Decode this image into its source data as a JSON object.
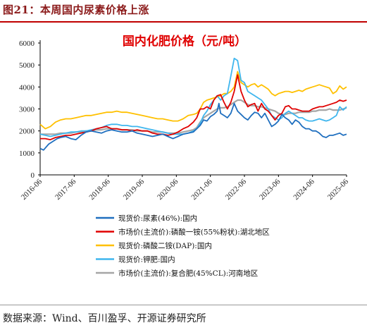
{
  "figure_title": "图21：本周国内尿素价格上涨",
  "source_note": "数据来源：Wind、百川盈孚、开源证券研究所",
  "colors": {
    "series_urea": "#1f6fbf",
    "series_map": "#e00000",
    "series_dap": "#ffc000",
    "series_potash": "#3fb6ee",
    "series_compound": "#a6a6a6",
    "title_red": "#e00000",
    "header_red": "#c00000"
  },
  "chart_data": {
    "type": "line",
    "title": "国内化肥价格（元/吨）",
    "ylim": [
      0,
      6000
    ],
    "yticks": [
      0,
      1000,
      2000,
      3000,
      4000,
      5000,
      6000
    ],
    "xlim": [
      2016.5,
      2025.5
    ],
    "xticks": [
      "2016-06",
      "2017-06",
      "2018-06",
      "2019-06",
      "2020-06",
      "2021-06",
      "2022-06",
      "2023-06",
      "2024-06",
      "2025-06"
    ],
    "grid": false,
    "legend_position": "bottom",
    "series": [
      {
        "name": "现货价:尿素(46%):国内",
        "color": "#1f6fbf",
        "x": [
          2016.5,
          2016.6,
          2016.75,
          2016.9,
          2017.0,
          2017.1,
          2017.25,
          2017.4,
          2017.55,
          2017.7,
          2017.85,
          2018.0,
          2018.15,
          2018.3,
          2018.45,
          2018.6,
          2018.75,
          2018.9,
          2019.05,
          2019.2,
          2019.35,
          2019.5,
          2019.65,
          2019.8,
          2019.95,
          2020.1,
          2020.25,
          2020.4,
          2020.55,
          2020.7,
          2020.85,
          2021.0,
          2021.1,
          2021.2,
          2021.3,
          2021.4,
          2021.5,
          2021.6,
          2021.7,
          2021.75,
          2021.8,
          2021.9,
          2022.0,
          2022.1,
          2022.2,
          2022.3,
          2022.4,
          2022.5,
          2022.6,
          2022.7,
          2022.8,
          2022.9,
          2023.0,
          2023.1,
          2023.2,
          2023.3,
          2023.4,
          2023.5,
          2023.6,
          2023.7,
          2023.8,
          2023.9,
          2024.0,
          2024.1,
          2024.2,
          2024.3,
          2024.4,
          2024.5,
          2024.6,
          2024.7,
          2024.8,
          2024.9,
          2025.0,
          2025.1,
          2025.2,
          2025.3,
          2025.4,
          2025.5
        ],
        "y": [
          1200,
          1130,
          1400,
          1550,
          1650,
          1700,
          1750,
          1650,
          1600,
          1800,
          1950,
          2000,
          1950,
          1900,
          2000,
          2050,
          2000,
          1950,
          1950,
          2000,
          1900,
          1850,
          1800,
          1750,
          1800,
          1850,
          1750,
          1650,
          1750,
          1850,
          1900,
          1950,
          2100,
          2250,
          2500,
          2450,
          2650,
          2750,
          2900,
          3250,
          2800,
          2700,
          2600,
          2800,
          3250,
          2900,
          2750,
          2600,
          2500,
          2700,
          2850,
          2800,
          2600,
          2800,
          2500,
          2200,
          2300,
          2450,
          2750,
          2600,
          2500,
          2300,
          2500,
          2400,
          2200,
          2100,
          2100,
          2000,
          2000,
          1900,
          1750,
          1700,
          1800,
          1800,
          1850,
          1900,
          1800,
          1850
        ]
      },
      {
        "name": "市场价(主流价):磷酸一铵(55%粉状):湖北地区",
        "color": "#e00000",
        "x": [
          2016.5,
          2016.65,
          2016.8,
          2016.95,
          2017.1,
          2017.25,
          2017.4,
          2017.55,
          2017.7,
          2017.85,
          2018.0,
          2018.15,
          2018.3,
          2018.45,
          2018.6,
          2018.75,
          2018.9,
          2019.05,
          2019.2,
          2019.35,
          2019.5,
          2019.65,
          2019.8,
          2019.95,
          2020.1,
          2020.25,
          2020.4,
          2020.55,
          2020.7,
          2020.85,
          2021.0,
          2021.1,
          2021.2,
          2021.3,
          2021.4,
          2021.5,
          2021.6,
          2021.7,
          2021.8,
          2021.9,
          2022.0,
          2022.1,
          2022.2,
          2022.3,
          2022.4,
          2022.5,
          2022.6,
          2022.7,
          2022.8,
          2022.9,
          2023.0,
          2023.1,
          2023.2,
          2023.3,
          2023.4,
          2023.5,
          2023.6,
          2023.7,
          2023.8,
          2023.9,
          2024.0,
          2024.1,
          2024.2,
          2024.3,
          2024.4,
          2024.5,
          2024.6,
          2024.7,
          2024.8,
          2024.9,
          2025.0,
          2025.1,
          2025.2,
          2025.3,
          2025.4,
          2025.5
        ],
        "y": [
          1650,
          1650,
          1600,
          1700,
          1750,
          1800,
          1800,
          1850,
          1900,
          1950,
          2000,
          2100,
          2150,
          2200,
          2100,
          2100,
          2050,
          2050,
          2000,
          2050,
          2000,
          2000,
          1900,
          1850,
          1850,
          1800,
          1850,
          1950,
          2100,
          2200,
          2400,
          2600,
          3000,
          3000,
          3100,
          3000,
          3400,
          3600,
          3650,
          3300,
          3000,
          3300,
          3800,
          4550,
          3800,
          3400,
          3100,
          3200,
          3250,
          2900,
          3250,
          3000,
          2900,
          2700,
          2500,
          2700,
          2800,
          3100,
          3150,
          3000,
          3000,
          2950,
          2900,
          2900,
          2900,
          3000,
          3050,
          3100,
          3100,
          3150,
          3200,
          3250,
          3300,
          3400,
          3350,
          3400
        ]
      },
      {
        "name": "现货价:磷酸二铵(DAP):国内",
        "color": "#ffc000",
        "x": [
          2016.5,
          2016.65,
          2016.8,
          2016.95,
          2017.1,
          2017.25,
          2017.4,
          2017.55,
          2017.7,
          2017.85,
          2018.0,
          2018.15,
          2018.3,
          2018.45,
          2018.6,
          2018.75,
          2018.9,
          2019.05,
          2019.2,
          2019.35,
          2019.5,
          2019.65,
          2019.8,
          2019.95,
          2020.1,
          2020.25,
          2020.4,
          2020.55,
          2020.7,
          2020.85,
          2021.0,
          2021.1,
          2021.2,
          2021.3,
          2021.4,
          2021.5,
          2021.6,
          2021.7,
          2021.8,
          2021.9,
          2022.0,
          2022.1,
          2022.2,
          2022.3,
          2022.4,
          2022.5,
          2022.6,
          2022.7,
          2022.8,
          2022.9,
          2023.0,
          2023.1,
          2023.2,
          2023.3,
          2023.4,
          2023.5,
          2023.6,
          2023.7,
          2023.8,
          2023.9,
          2024.0,
          2024.1,
          2024.2,
          2024.3,
          2024.4,
          2024.5,
          2024.6,
          2024.7,
          2024.8,
          2024.9,
          2025.0,
          2025.1,
          2025.2,
          2025.3,
          2025.4,
          2025.5
        ],
        "y": [
          2300,
          2100,
          2200,
          2400,
          2500,
          2550,
          2550,
          2600,
          2650,
          2700,
          2700,
          2750,
          2800,
          2850,
          2850,
          2900,
          2850,
          2850,
          2800,
          2750,
          2700,
          2650,
          2600,
          2550,
          2550,
          2500,
          2450,
          2450,
          2550,
          2700,
          2750,
          2800,
          3000,
          3300,
          3400,
          3450,
          3500,
          3550,
          3600,
          3700,
          3700,
          3800,
          4000,
          4700,
          4200,
          4100,
          4000,
          4100,
          4150,
          4000,
          4100,
          4000,
          3900,
          3700,
          3600,
          3700,
          3750,
          3800,
          3800,
          3750,
          3800,
          3850,
          3800,
          3900,
          3950,
          4000,
          4050,
          4100,
          4050,
          4000,
          3950,
          3700,
          3800,
          4050,
          3900,
          4000
        ]
      },
      {
        "name": "现货价:钾肥:国内",
        "color": "#3fb6ee",
        "x": [
          2016.5,
          2016.65,
          2016.8,
          2016.95,
          2017.1,
          2017.25,
          2017.4,
          2017.55,
          2017.7,
          2017.85,
          2018.0,
          2018.15,
          2018.3,
          2018.45,
          2018.6,
          2018.75,
          2018.9,
          2019.05,
          2019.2,
          2019.35,
          2019.5,
          2019.65,
          2019.8,
          2019.95,
          2020.1,
          2020.25,
          2020.4,
          2020.55,
          2020.7,
          2020.85,
          2021.0,
          2021.1,
          2021.2,
          2021.3,
          2021.4,
          2021.5,
          2021.6,
          2021.7,
          2021.8,
          2021.9,
          2022.0,
          2022.1,
          2022.2,
          2022.3,
          2022.4,
          2022.5,
          2022.6,
          2022.7,
          2022.8,
          2022.9,
          2023.0,
          2023.1,
          2023.2,
          2023.3,
          2023.4,
          2023.5,
          2023.6,
          2023.7,
          2023.8,
          2023.9,
          2024.0,
          2024.1,
          2024.2,
          2024.3,
          2024.4,
          2024.5,
          2024.6,
          2024.7,
          2024.8,
          2024.9,
          2025.0,
          2025.1,
          2025.2,
          2025.3,
          2025.4,
          2025.5
        ],
        "y": [
          1850,
          1800,
          1750,
          1800,
          1850,
          1900,
          1950,
          1950,
          2000,
          2000,
          2050,
          2100,
          2150,
          2250,
          2300,
          2300,
          2250,
          2250,
          2200,
          2200,
          2150,
          2100,
          2050,
          2000,
          1950,
          1900,
          1850,
          1850,
          1850,
          1900,
          2000,
          2100,
          2350,
          2700,
          2900,
          3200,
          3400,
          3600,
          3400,
          3600,
          3700,
          4500,
          5300,
          5200,
          4300,
          4200,
          3800,
          3700,
          3600,
          3500,
          3400,
          3200,
          3000,
          2700,
          2600,
          2500,
          2600,
          2800,
          2900,
          2800,
          2700,
          2600,
          2600,
          2500,
          2450,
          2450,
          2500,
          2550,
          2500,
          2450,
          2500,
          2600,
          2700,
          3100,
          2950,
          3100
        ]
      },
      {
        "name": "市场价(主流价):复合肥(45%CL):河南地区",
        "color": "#a6a6a6",
        "x": [
          2016.5,
          2016.65,
          2016.8,
          2016.95,
          2017.1,
          2017.25,
          2017.4,
          2017.55,
          2017.7,
          2017.85,
          2018.0,
          2018.15,
          2018.3,
          2018.45,
          2018.6,
          2018.75,
          2018.9,
          2019.05,
          2019.2,
          2019.35,
          2019.5,
          2019.65,
          2019.8,
          2019.95,
          2020.1,
          2020.25,
          2020.4,
          2020.55,
          2020.7,
          2020.85,
          2021.0,
          2021.1,
          2021.2,
          2021.3,
          2021.4,
          2021.5,
          2021.6,
          2021.7,
          2021.8,
          2021.9,
          2022.0,
          2022.1,
          2022.2,
          2022.3,
          2022.4,
          2022.5,
          2022.6,
          2022.7,
          2022.8,
          2022.9,
          2023.0,
          2023.1,
          2023.2,
          2023.3,
          2023.4,
          2023.5,
          2023.6,
          2023.7,
          2023.8,
          2023.9,
          2024.0,
          2024.1,
          2024.2,
          2024.3,
          2024.4,
          2024.5,
          2024.6,
          2024.7,
          2024.8,
          2024.9,
          2025.0,
          2025.1,
          2025.2,
          2025.3,
          2025.4,
          2025.5
        ],
        "y": [
          1850,
          1850,
          1850,
          1850,
          1900,
          1900,
          1900,
          1950,
          1950,
          2000,
          2000,
          2050,
          2050,
          2100,
          2100,
          2100,
          2050,
          2050,
          2050,
          2000,
          2000,
          2000,
          1950,
          1950,
          1950,
          1900,
          1900,
          1900,
          1950,
          2000,
          2050,
          2150,
          2400,
          2600,
          2700,
          2800,
          2900,
          3000,
          3050,
          3050,
          3100,
          3200,
          3300,
          3400,
          3400,
          3300,
          3200,
          3150,
          3150,
          3100,
          3100,
          3050,
          3000,
          2950,
          2900,
          2800,
          2750,
          2750,
          2800,
          2800,
          2800,
          2850,
          2850,
          2850,
          2850,
          2900,
          2900,
          2950,
          2950,
          2950,
          3000,
          2950,
          2950,
          2950,
          3000,
          3050
        ]
      }
    ]
  }
}
